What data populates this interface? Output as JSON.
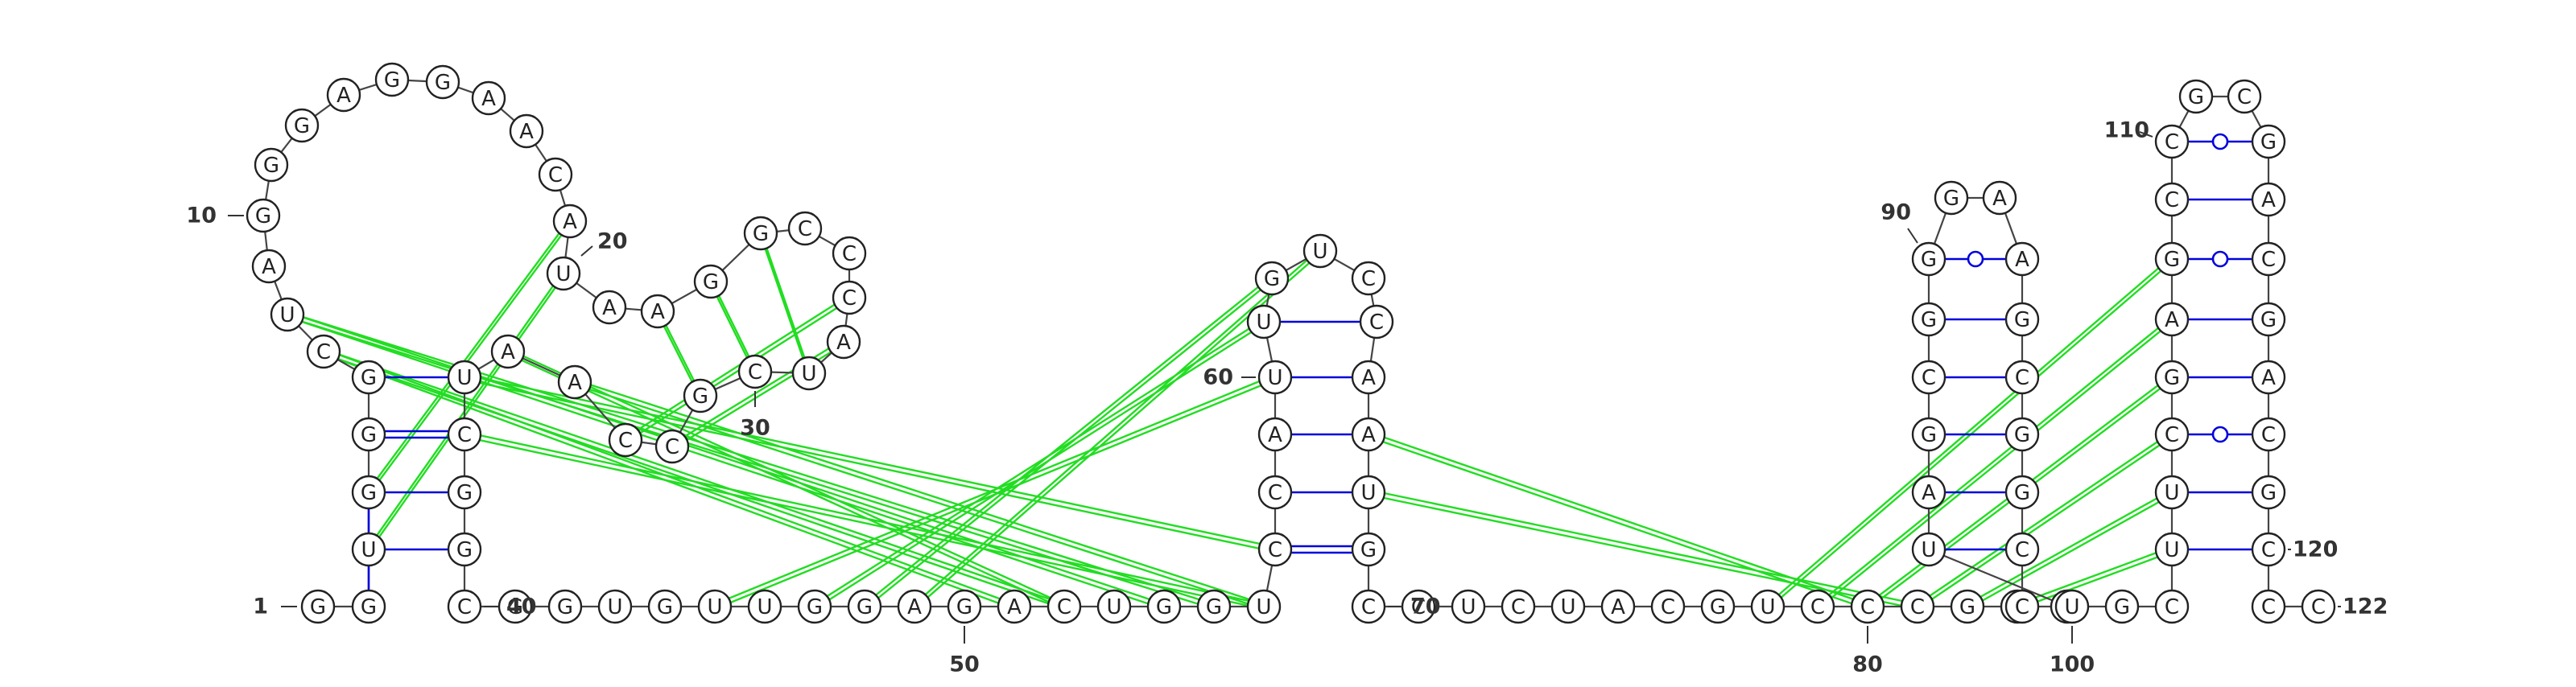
{
  "sequence": "GGUGGGCUAGGGAGGAACAUAAGGCCCAUCGCCAAUCGGCGGUGUUGGAGACUGGUCCAUUGUCCAAUGCCUCUACGUCCCGCGUAGCGGGAAGCGGCCUGCUUCGAGCCGCGACGACGCCCG",
  "position_labels": [
    {
      "text": "1",
      "n": 1
    },
    {
      "text": "10",
      "n": 10
    },
    {
      "text": "20",
      "n": 20
    },
    {
      "text": "30",
      "n": 30
    },
    {
      "text": "40",
      "n": 40
    },
    {
      "text": "50",
      "n": 50
    },
    {
      "text": "60",
      "n": 60
    },
    {
      "text": "70",
      "n": 70
    },
    {
      "text": "80",
      "n": 80
    },
    {
      "text": "90",
      "n": 90
    },
    {
      "text": "100",
      "n": 100
    },
    {
      "text": "110",
      "n": 110
    },
    {
      "text": "120",
      "n": 120
    },
    {
      "text": "122",
      "n": 122
    }
  ],
  "pairs": [
    {
      "i": 2,
      "j": 4,
      "type": "wobble"
    },
    {
      "i": 5,
      "j": 39,
      "type": "wc"
    },
    {
      "i": 6,
      "j": 38,
      "type": "gc"
    },
    {
      "i": 7,
      "j": 37,
      "type": "wc"
    },
    {
      "i": 8,
      "j": 36,
      "type": "gc"
    },
    {
      "i": 58,
      "j": 71,
      "type": "gc"
    },
    {
      "i": 59,
      "j": 70,
      "type": "gc"
    },
    {
      "i": 60,
      "j": 69,
      "type": "gc"
    },
    {
      "i": 61,
      "j": 68,
      "type": "wc"
    },
    {
      "i": 85,
      "j": 97,
      "type": "gc"
    },
    {
      "i": 86,
      "j": 96,
      "type": "wc"
    },
    {
      "i": 87,
      "j": 95,
      "type": "wc"
    },
    {
      "i": 88,
      "j": 94,
      "type": "gc"
    },
    {
      "i": 89,
      "j": 93,
      "type": "gc"
    },
    {
      "i": 90,
      "j": 92,
      "type": "gc"
    },
    {
      "i": 91,
      "j": 91,
      "type": "wobble"
    },
    {
      "i": 103,
      "j": 121,
      "type": "wc"
    },
    {
      "i": 104,
      "j": 120,
      "type": "wc"
    },
    {
      "i": 105,
      "j": 119,
      "type": "wobble"
    },
    {
      "i": 106,
      "j": 118,
      "type": "gc"
    },
    {
      "i": 107,
      "j": 117,
      "type": "gc"
    },
    {
      "i": 108,
      "j": 116,
      "type": "gc"
    },
    {
      "i": 109,
      "j": 115,
      "type": "wobble"
    },
    {
      "i": 110,
      "j": 114,
      "type": "gc"
    },
    {
      "i": 111,
      "j": 113,
      "type": "wobble"
    },
    {
      "i": 54,
      "j": 56,
      "type": "wc"
    }
  ],
  "colors": {
    "canonical_pair": "#0000dd",
    "wobble_pair": "#0000dd",
    "pseudoknot": "#22dd22",
    "backbone": "#444444",
    "text": "#333333"
  }
}
